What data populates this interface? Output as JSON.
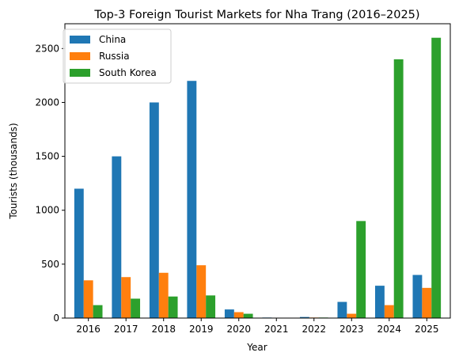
{
  "chart_data": {
    "type": "bar",
    "title": "Top-3 Foreign Tourist Markets for Nha Trang (2016–2025)",
    "xlabel": "Year",
    "ylabel": "Tourists (thousands)",
    "categories": [
      "2016",
      "2017",
      "2018",
      "2019",
      "2020",
      "2021",
      "2022",
      "2023",
      "2024",
      "2025"
    ],
    "series": [
      {
        "name": "China",
        "color": "#1f77b4",
        "values": [
          1200,
          1500,
          2000,
          2200,
          80,
          5,
          10,
          150,
          300,
          400
        ]
      },
      {
        "name": "Russia",
        "color": "#ff7f0e",
        "values": [
          350,
          380,
          420,
          490,
          55,
          3,
          5,
          40,
          120,
          280
        ]
      },
      {
        "name": "South Korea",
        "color": "#2ca02c",
        "values": [
          120,
          180,
          200,
          210,
          40,
          2,
          5,
          900,
          2400,
          2600
        ]
      }
    ],
    "ylim": [
      0,
      2730
    ],
    "yticks": [
      0,
      500,
      1000,
      1500,
      2000,
      2500
    ],
    "grid": false,
    "legend_position": "top-left"
  }
}
